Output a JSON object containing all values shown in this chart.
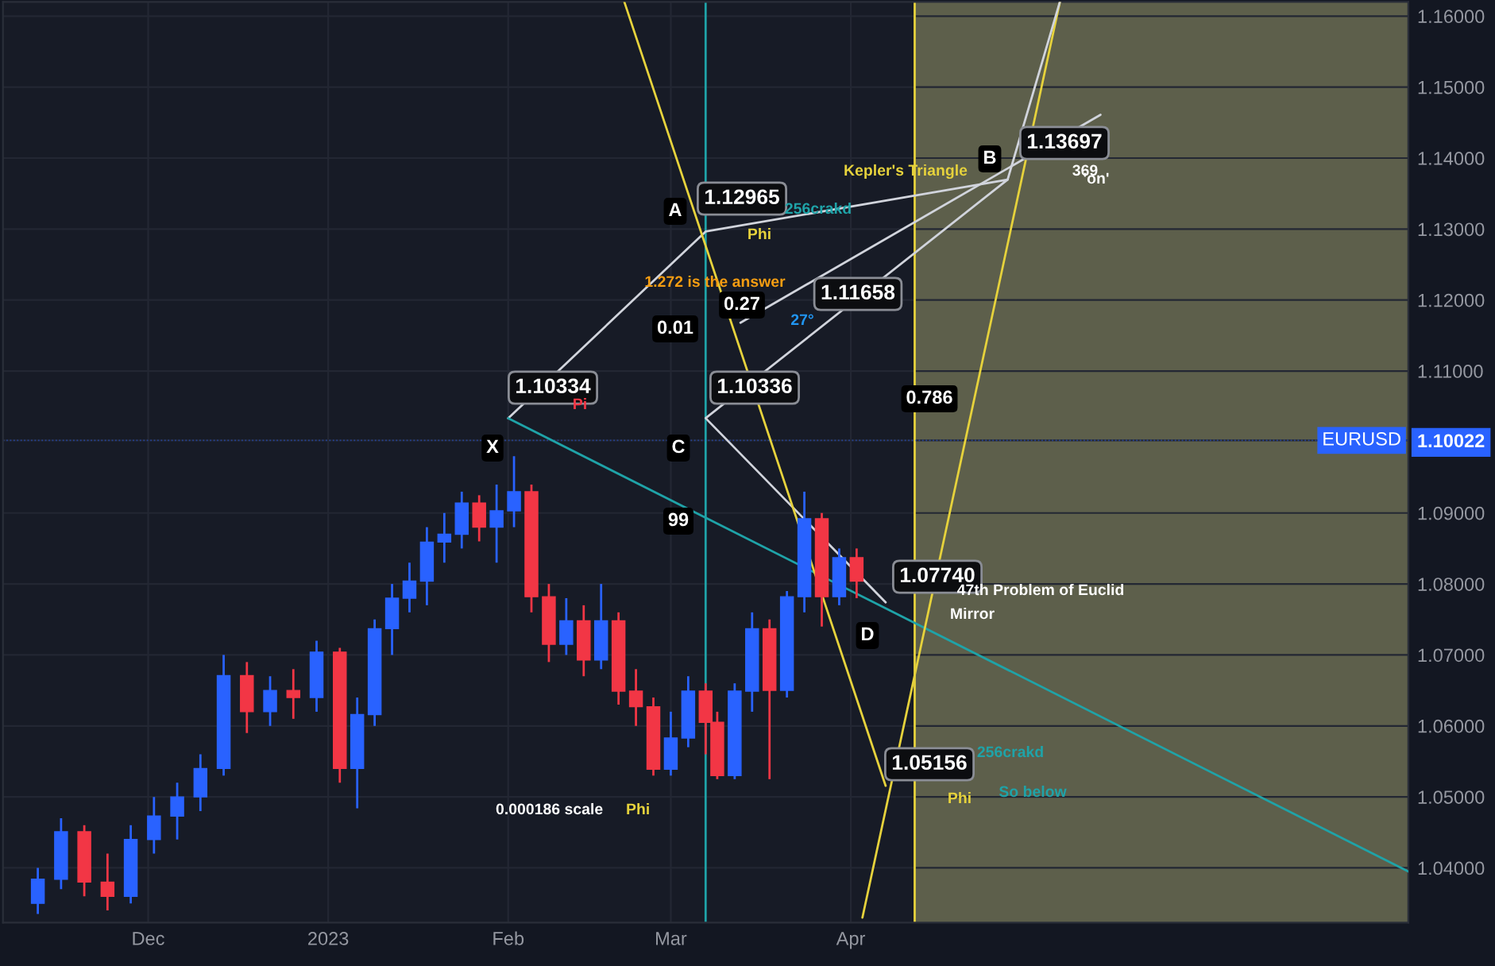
{
  "chart_data": {
    "type": "candlestick",
    "x": [
      "2022-11-12",
      "2022-11-16",
      "2022-11-20",
      "2022-11-24",
      "2022-11-28",
      "2022-12-02",
      "2022-12-06",
      "2022-12-10",
      "2022-12-14",
      "2022-12-18",
      "2022-12-22",
      "2022-12-26",
      "2022-12-30",
      "2023-01-03",
      "2023-01-06",
      "2023-01-09",
      "2023-01-12",
      "2023-01-15",
      "2023-01-18",
      "2023-01-21",
      "2023-01-24",
      "2023-01-27",
      "2023-01-30",
      "2023-02-02",
      "2023-02-05",
      "2023-02-08",
      "2023-02-11",
      "2023-02-14",
      "2023-02-17",
      "2023-02-20",
      "2023-02-23",
      "2023-02-26",
      "2023-03-01",
      "2023-03-04",
      "2023-03-07",
      "2023-03-09",
      "2023-03-12",
      "2023-03-15",
      "2023-03-18",
      "2023-03-21",
      "2023-03-24",
      "2023-03-27",
      "2023-03-30",
      "2023-04-02"
    ],
    "ohlc": [
      [
        1.035,
        1.04,
        1.0335,
        1.0384
      ],
      [
        1.0384,
        1.047,
        1.037,
        1.0451
      ],
      [
        1.0451,
        1.046,
        1.036,
        1.038
      ],
      [
        1.038,
        1.042,
        1.034,
        1.036
      ],
      [
        1.036,
        1.046,
        1.035,
        1.044
      ],
      [
        1.044,
        1.05,
        1.042,
        1.0473
      ],
      [
        1.0473,
        1.052,
        1.044,
        1.05
      ],
      [
        1.05,
        1.056,
        1.048,
        1.054
      ],
      [
        1.054,
        1.07,
        1.053,
        1.0671
      ],
      [
        1.0671,
        1.069,
        1.059,
        1.062
      ],
      [
        1.062,
        1.067,
        1.06,
        1.065
      ],
      [
        1.065,
        1.068,
        1.061,
        1.064
      ],
      [
        1.064,
        1.072,
        1.062,
        1.0704
      ],
      [
        1.0704,
        1.071,
        1.052,
        1.054
      ],
      [
        1.054,
        1.064,
        1.0484,
        1.0616
      ],
      [
        1.0616,
        1.075,
        1.06,
        1.0737
      ],
      [
        1.0737,
        1.08,
        1.07,
        1.078
      ],
      [
        1.078,
        1.083,
        1.076,
        1.0804
      ],
      [
        1.0804,
        1.088,
        1.077,
        1.0859
      ],
      [
        1.0859,
        1.09,
        1.083,
        1.087
      ],
      [
        1.087,
        1.093,
        1.085,
        1.0914
      ],
      [
        1.0914,
        1.0925,
        1.086,
        1.088
      ],
      [
        1.088,
        1.094,
        1.083,
        1.0903
      ],
      [
        1.0903,
        1.098,
        1.088,
        1.093
      ],
      [
        1.093,
        1.094,
        1.076,
        1.0782
      ],
      [
        1.0782,
        1.08,
        1.069,
        1.0715
      ],
      [
        1.0715,
        1.078,
        1.07,
        1.0748
      ],
      [
        1.0748,
        1.077,
        1.067,
        1.0693
      ],
      [
        1.0693,
        1.08,
        1.068,
        1.0748
      ],
      [
        1.0748,
        1.076,
        1.063,
        1.0649
      ],
      [
        1.0649,
        1.068,
        1.06,
        1.0627
      ],
      [
        1.0627,
        1.064,
        1.053,
        1.0539
      ],
      [
        1.0539,
        1.062,
        1.053,
        1.0583
      ],
      [
        1.0583,
        1.067,
        1.057,
        1.0649
      ],
      [
        1.0649,
        1.066,
        1.056,
        1.0605
      ],
      [
        1.0605,
        1.062,
        1.0525,
        1.053
      ],
      [
        1.053,
        1.066,
        1.0525,
        1.0649
      ],
      [
        1.0649,
        1.076,
        1.062,
        1.0737
      ],
      [
        1.0737,
        1.075,
        1.0525,
        1.065
      ],
      [
        1.065,
        1.079,
        1.064,
        1.0782
      ],
      [
        1.0782,
        1.093,
        1.076,
        1.0892
      ],
      [
        1.0892,
        1.09,
        1.074,
        1.0782
      ],
      [
        1.0782,
        1.085,
        1.077,
        1.0837
      ],
      [
        1.0837,
        1.085,
        1.078,
        1.0804
      ]
    ],
    "colors": [
      "#2962ff",
      "#2962ff",
      "#f23645",
      "#f23645",
      "#2962ff",
      "#2962ff",
      "#2962ff",
      "#2962ff",
      "#2962ff",
      "#f23645",
      "#2962ff",
      "#f23645",
      "#2962ff",
      "#f23645",
      "#2962ff",
      "#2962ff",
      "#2962ff",
      "#2962ff",
      "#2962ff",
      "#2962ff",
      "#2962ff",
      "#f23645",
      "#2962ff",
      "#2962ff",
      "#f23645",
      "#f23645",
      "#2962ff",
      "#f23645",
      "#2962ff",
      "#f23645",
      "#f23645",
      "#f23645",
      "#2962ff",
      "#2962ff",
      "#f23645",
      "#f23645",
      "#2962ff",
      "#2962ff",
      "#f23645",
      "#2962ff",
      "#2962ff",
      "#f23645",
      "#2962ff",
      "#f23645"
    ],
    "series": [
      {
        "type": "line",
        "color": "#d1d4dc",
        "x": [
          "2023-02-01",
          "2023-03-07",
          "2023-04-28",
          "2023-03-07",
          "2023-04-07"
        ],
        "values": [
          1.10334,
          1.12965,
          1.13697,
          1.10336,
          1.0774
        ]
      },
      {
        "type": "line",
        "color": "#1fa3a8",
        "x": [
          "2023-02-01",
          "2023-07-06"
        ],
        "values": [
          1.10334,
          1.0395
        ]
      },
      {
        "type": "line",
        "color": "#e6d23c",
        "x": [
          "2023-02-21",
          "2023-04-07"
        ],
        "values": [
          1.162,
          1.05156
        ]
      },
      {
        "type": "line",
        "color": "#e6d23c",
        "x": [
          "2023-04-03",
          "2023-05-07"
        ],
        "values": [
          1.033,
          1.162
        ]
      },
      {
        "type": "line",
        "color": "#d1d4dc",
        "x": [
          "2023-03-13",
          "2023-05-14"
        ],
        "values": [
          1.1168,
          1.1461
        ]
      },
      {
        "type": "line",
        "color": "#d1d4dc",
        "x": [
          "2023-04-28",
          "2023-05-07"
        ],
        "values": [
          1.13697,
          1.162
        ]
      }
    ],
    "bands": [
      {
        "axis": "x",
        "from": "2023-04-12",
        "to": "2023-07-06",
        "color": "#5d5f4b"
      }
    ],
    "ref_lines": [
      {
        "axis": "x",
        "value": "2023-04-12",
        "color": "#e6d23c"
      },
      {
        "axis": "x",
        "value": "2023-03-07",
        "color": "#1fa3a8"
      },
      {
        "axis": "y",
        "value": 1.10022,
        "label": "EURUSD",
        "color": "#2962ff",
        "line_style": "dotted"
      }
    ],
    "annotations": [
      "X",
      "A",
      "B",
      "C",
      "D",
      "1.12965",
      "1.13697",
      "1.10334",
      "1.10336",
      "1.11658",
      "1.07740",
      "1.05156",
      "0.786",
      "0.27",
      "0.01",
      "99",
      "1.272 is the answer",
      "Kepler's Triangle",
      "47th Problem of Euclid",
      "Mirror",
      "So below",
      "256crakd",
      "256crakd",
      "0.000186 scale",
      "Phi",
      "27°",
      "369",
      "Pi",
      "'on'",
      "Phi",
      "Phi"
    ],
    "xlim": [
      "2022-11-06",
      "2023-07-06"
    ],
    "xticks": [
      {
        "value": "2022-12-01",
        "label": "Dec"
      },
      {
        "value": "2023-01-01",
        "label": "2023"
      },
      {
        "value": "2023-02-01",
        "label": "Feb"
      },
      {
        "value": "2023-03-01",
        "label": "Mar"
      },
      {
        "value": "2023-04-01",
        "label": "Apr"
      }
    ],
    "ylim": [
      1.0323,
      1.162
    ],
    "yticks": [
      {
        "value": 1.04,
        "label": "1.04000"
      },
      {
        "value": 1.05,
        "label": "1.05000"
      },
      {
        "value": 1.06,
        "label": "1.06000"
      },
      {
        "value": 1.07,
        "label": "1.07000"
      },
      {
        "value": 1.08,
        "label": "1.08000"
      },
      {
        "value": 1.09,
        "label": "1.09000"
      },
      {
        "value": 1.10022,
        "label": "1.10022"
      },
      {
        "value": 1.11,
        "label": "1.11000"
      },
      {
        "value": 1.12,
        "label": "1.12000"
      },
      {
        "value": 1.13,
        "label": "1.13000"
      },
      {
        "value": 1.14,
        "label": "1.14000"
      },
      {
        "value": 1.15,
        "label": "1.15000"
      },
      {
        "value": 1.16,
        "label": "1.16000"
      }
    ],
    "grid": true
  }
}
